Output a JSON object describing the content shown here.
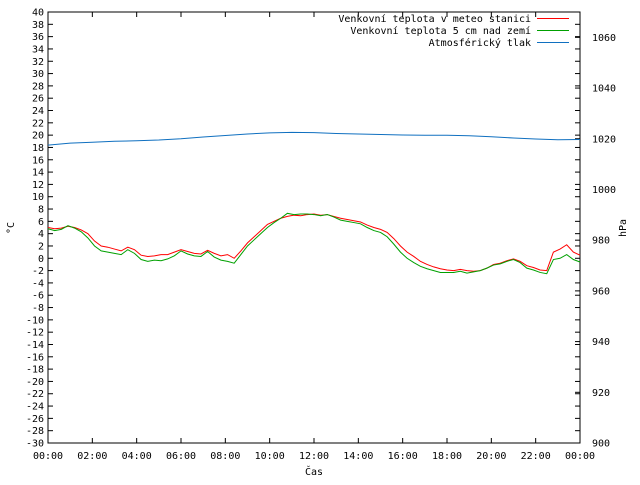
{
  "chart_data": {
    "type": "line",
    "title": "",
    "xlabel": "Čas",
    "ylabel": "°C",
    "y2label": "hPa",
    "xlim": [
      0,
      24
    ],
    "ylim": [
      -30,
      40
    ],
    "y2lim": [
      900,
      1070
    ],
    "x_ticks": [
      "00:00",
      "02:00",
      "04:00",
      "06:00",
      "08:00",
      "10:00",
      "12:00",
      "14:00",
      "16:00",
      "18:00",
      "20:00",
      "22:00",
      "00:00"
    ],
    "y_ticks": [
      40,
      38,
      36,
      34,
      32,
      30,
      28,
      26,
      24,
      22,
      20,
      18,
      16,
      14,
      12,
      10,
      8,
      6,
      4,
      2,
      0,
      -2,
      -4,
      -6,
      -8,
      -10,
      -12,
      -14,
      -16,
      -18,
      -20,
      -22,
      -24,
      -26,
      -28,
      -30
    ],
    "y2_ticks": [
      1060,
      1040,
      1020,
      1000,
      980,
      960,
      940,
      920,
      900
    ],
    "grid": false,
    "legend_position": "top-right",
    "series": [
      {
        "name": "Venkovní teplota v meteo stanici",
        "color": "#ff0000",
        "axis": "y",
        "x": [
          0,
          0.3,
          0.6,
          0.9,
          1.2,
          1.5,
          1.8,
          2.1,
          2.4,
          2.7,
          3.0,
          3.3,
          3.6,
          3.9,
          4.2,
          4.5,
          4.8,
          5.1,
          5.4,
          5.7,
          6.0,
          6.3,
          6.6,
          6.9,
          7.2,
          7.5,
          7.8,
          8.1,
          8.4,
          8.7,
          9.0,
          9.3,
          9.6,
          9.9,
          10.2,
          10.5,
          10.8,
          11.1,
          11.4,
          11.7,
          12.0,
          12.3,
          12.6,
          12.9,
          13.2,
          13.5,
          13.8,
          14.1,
          14.4,
          14.7,
          15.0,
          15.3,
          15.6,
          15.9,
          16.2,
          16.5,
          16.8,
          17.1,
          17.4,
          17.7,
          18.0,
          18.3,
          18.6,
          18.9,
          19.2,
          19.5,
          19.8,
          20.1,
          20.4,
          20.7,
          21.0,
          21.3,
          21.6,
          21.9,
          22.2,
          22.5,
          22.8,
          23.1,
          23.4,
          23.7,
          24.0
        ],
        "values": [
          5.0,
          4.8,
          4.9,
          5.2,
          5.0,
          4.6,
          4.0,
          2.8,
          2.0,
          1.8,
          1.5,
          1.2,
          1.8,
          1.4,
          0.5,
          0.3,
          0.4,
          0.6,
          0.6,
          1.0,
          1.4,
          1.1,
          0.8,
          0.7,
          1.3,
          0.8,
          0.4,
          0.6,
          0.0,
          1.2,
          2.5,
          3.5,
          4.5,
          5.5,
          6.0,
          6.5,
          6.8,
          7.0,
          6.9,
          7.1,
          7.2,
          7.0,
          7.1,
          6.8,
          6.5,
          6.3,
          6.1,
          5.9,
          5.4,
          5.0,
          4.7,
          4.2,
          3.2,
          2.0,
          1.0,
          0.3,
          -0.5,
          -1.0,
          -1.4,
          -1.7,
          -1.9,
          -2.0,
          -1.8,
          -2.0,
          -2.1,
          -2.0,
          -1.6,
          -1.0,
          -0.8,
          -0.4,
          -0.1,
          -0.5,
          -1.2,
          -1.5,
          -1.9,
          -2.0,
          1.0,
          1.5,
          2.2,
          1.0,
          0.5
        ]
      },
      {
        "name": "Venkovní teplota 5 cm nad zemí",
        "color": "#00a000",
        "axis": "y",
        "x": [
          0,
          0.3,
          0.6,
          0.9,
          1.2,
          1.5,
          1.8,
          2.1,
          2.4,
          2.7,
          3.0,
          3.3,
          3.6,
          3.9,
          4.2,
          4.5,
          4.8,
          5.1,
          5.4,
          5.7,
          6.0,
          6.3,
          6.6,
          6.9,
          7.2,
          7.5,
          7.8,
          8.1,
          8.4,
          8.7,
          9.0,
          9.3,
          9.6,
          9.9,
          10.2,
          10.5,
          10.8,
          11.1,
          11.4,
          11.7,
          12.0,
          12.3,
          12.6,
          12.9,
          13.2,
          13.5,
          13.8,
          14.1,
          14.4,
          14.7,
          15.0,
          15.3,
          15.6,
          15.9,
          16.2,
          16.5,
          16.8,
          17.1,
          17.4,
          17.7,
          18.0,
          18.3,
          18.6,
          18.9,
          19.2,
          19.5,
          19.8,
          20.1,
          20.4,
          20.7,
          21.0,
          21.3,
          21.6,
          21.9,
          22.2,
          22.5,
          22.8,
          23.1,
          23.4,
          23.7,
          24.0
        ],
        "values": [
          4.8,
          4.5,
          4.7,
          5.3,
          4.9,
          4.3,
          3.3,
          2.0,
          1.2,
          1.0,
          0.8,
          0.6,
          1.4,
          0.8,
          -0.2,
          -0.5,
          -0.3,
          -0.4,
          -0.1,
          0.4,
          1.2,
          0.7,
          0.4,
          0.3,
          1.1,
          0.2,
          -0.3,
          -0.5,
          -0.8,
          0.6,
          2.0,
          3.0,
          4.0,
          5.0,
          5.8,
          6.5,
          7.3,
          7.1,
          7.2,
          7.2,
          7.1,
          6.9,
          7.1,
          6.7,
          6.2,
          6.0,
          5.8,
          5.6,
          5.0,
          4.5,
          4.2,
          3.5,
          2.3,
          1.0,
          0.0,
          -0.7,
          -1.3,
          -1.7,
          -2.0,
          -2.3,
          -2.3,
          -2.3,
          -2.1,
          -2.4,
          -2.2,
          -2.0,
          -1.6,
          -1.1,
          -0.9,
          -0.5,
          -0.2,
          -0.7,
          -1.6,
          -1.9,
          -2.3,
          -2.5,
          -0.2,
          0.0,
          0.6,
          -0.2,
          -0.6
        ]
      },
      {
        "name": "Atmosférický tlak",
        "color": "#1070c0",
        "axis": "y2",
        "x": [
          0,
          1,
          2,
          3,
          4,
          5,
          6,
          7,
          8,
          9,
          10,
          11,
          12,
          13,
          14,
          15,
          16,
          17,
          18,
          19,
          20,
          21,
          22,
          23,
          24
        ],
        "values": [
          1017.5,
          1018.3,
          1018.6,
          1019.0,
          1019.2,
          1019.5,
          1020.0,
          1020.7,
          1021.3,
          1021.9,
          1022.3,
          1022.5,
          1022.4,
          1022.1,
          1021.9,
          1021.7,
          1021.5,
          1021.4,
          1021.4,
          1021.2,
          1020.8,
          1020.3,
          1019.9,
          1019.6,
          1019.7
        ]
      }
    ]
  }
}
